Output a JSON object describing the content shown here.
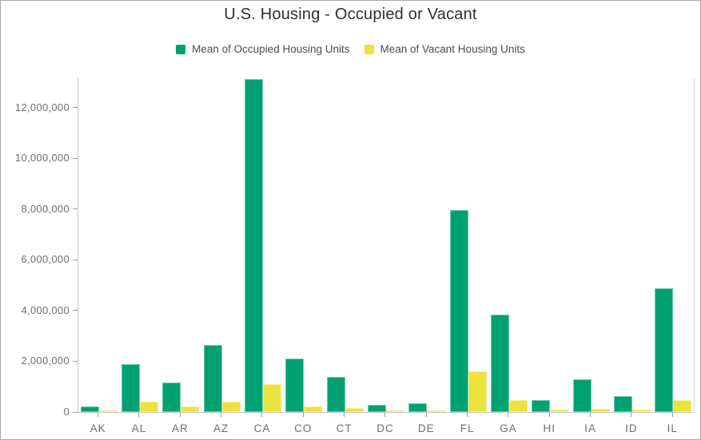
{
  "window": {
    "background": "#ffffff",
    "border_color": "#a6a6a6"
  },
  "chart_data": {
    "type": "bar",
    "title": "U.S. Housing - Occupied or Vacant",
    "categories": [
      "AK",
      "AL",
      "AR",
      "AZ",
      "CA",
      "CO",
      "CT",
      "DC",
      "DE",
      "FL",
      "GA",
      "HI",
      "IA",
      "ID",
      "IL"
    ],
    "series": [
      {
        "name": "Mean of Occupied Housing Units",
        "color": "#00a171",
        "values": [
          230000,
          1890000,
          1150000,
          2640000,
          13130000,
          2100000,
          1380000,
          280000,
          350000,
          7950000,
          3830000,
          460000,
          1280000,
          630000,
          4870000
        ]
      },
      {
        "name": "Mean of Vacant Housing Units",
        "color": "#ece23e",
        "values": [
          60000,
          400000,
          210000,
          410000,
          1100000,
          230000,
          150000,
          30000,
          60000,
          1620000,
          480000,
          90000,
          140000,
          85000,
          470000
        ]
      }
    ],
    "xlabel": "",
    "ylabel": "",
    "ylim": [
      0,
      13150000
    ],
    "yticks": [
      0,
      2000000,
      4000000,
      6000000,
      8000000,
      10000000,
      12000000
    ],
    "ytick_labels": [
      "0",
      "2,000,000",
      "4,000,000",
      "6,000,000",
      "8,000,000",
      "10,000,000",
      "12,000,000"
    ],
    "grid": false,
    "legend_position": "top",
    "axis_text_color": "#6e6e76",
    "axis_line_color": "#c6c6c6",
    "tick_mark_color": "#9e9e9e"
  }
}
